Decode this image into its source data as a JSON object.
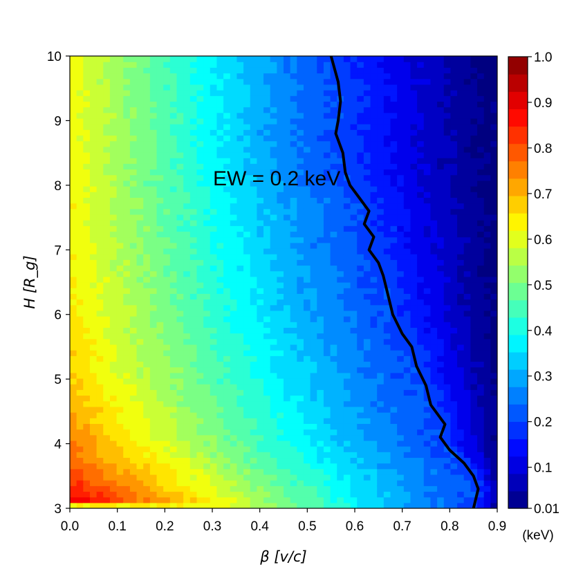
{
  "chart_data": {
    "type": "heatmap",
    "title": "",
    "xlabel": "β [v/c]",
    "ylabel": "H [R_g]",
    "xlim": [
      0.0,
      0.9
    ],
    "ylim": [
      3,
      10
    ],
    "x_ticks": [
      "0.0",
      "0.1",
      "0.2",
      "0.3",
      "0.4",
      "0.5",
      "0.6",
      "0.7",
      "0.8",
      "0.9"
    ],
    "y_ticks": [
      "3",
      "4",
      "5",
      "6",
      "7",
      "8",
      "9",
      "10"
    ],
    "colorbar": {
      "label": "(keV)",
      "range": [
        0.01,
        1.0
      ],
      "ticks": [
        "0.01",
        "0.1",
        "0.2",
        "0.3",
        "0.4",
        "0.5",
        "0.6",
        "0.7",
        "0.8",
        "0.9",
        "1.0"
      ],
      "colormap": "jet"
    },
    "annotation": "EW = 0.2 keV",
    "contour_level": 0.2,
    "contour_line": {
      "beta": [
        0.55,
        0.565,
        0.57,
        0.565,
        0.56,
        0.575,
        0.58,
        0.59,
        0.61,
        0.63,
        0.62,
        0.64,
        0.63,
        0.65,
        0.66,
        0.67,
        0.68,
        0.7,
        0.72,
        0.73,
        0.75,
        0.76,
        0.79,
        0.78,
        0.8,
        0.83,
        0.85,
        0.86,
        0.85
      ],
      "H": [
        10.0,
        9.6,
        9.3,
        9.0,
        8.8,
        8.5,
        8.2,
        8.0,
        7.8,
        7.6,
        7.4,
        7.2,
        7.0,
        6.8,
        6.6,
        6.3,
        6.0,
        5.7,
        5.5,
        5.2,
        4.9,
        4.6,
        4.3,
        4.1,
        3.9,
        3.7,
        3.5,
        3.3,
        3.0
      ]
    }
  }
}
